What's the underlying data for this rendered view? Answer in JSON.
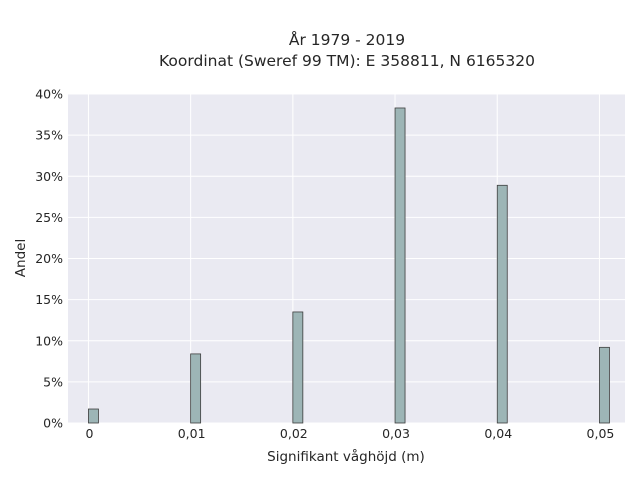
{
  "chart_data": {
    "type": "bar",
    "title": "År 1979 - 2019",
    "subtitle": "Koordinat (Sweref 99 TM): E 358811, N 6165320",
    "xlabel": "Signifikant våghöjd (m)",
    "ylabel": "Andel",
    "x": [
      0,
      0.01,
      0.02,
      0.03,
      0.04,
      0.05
    ],
    "x_tick_labels": [
      "0",
      "0,01",
      "0,02",
      "0,03",
      "0,04",
      "0,05"
    ],
    "values": [
      0.017,
      0.084,
      0.135,
      0.383,
      0.289,
      0.092
    ],
    "y_tick_labels": [
      "0%",
      "5%",
      "10%",
      "15%",
      "20%",
      "25%",
      "30%",
      "35%",
      "40%"
    ],
    "y_ticks": [
      0,
      0.05,
      0.1,
      0.15,
      0.2,
      0.25,
      0.3,
      0.35,
      0.4
    ],
    "xlim": [
      -0.002,
      0.0525
    ],
    "ylim": [
      0,
      0.4
    ],
    "grid": true,
    "colors": {
      "bar_fill": "#9db5b6",
      "bar_edge": "#3d3d3d",
      "plot_bg": "#eaeaf2",
      "grid": "#ffffff"
    }
  }
}
